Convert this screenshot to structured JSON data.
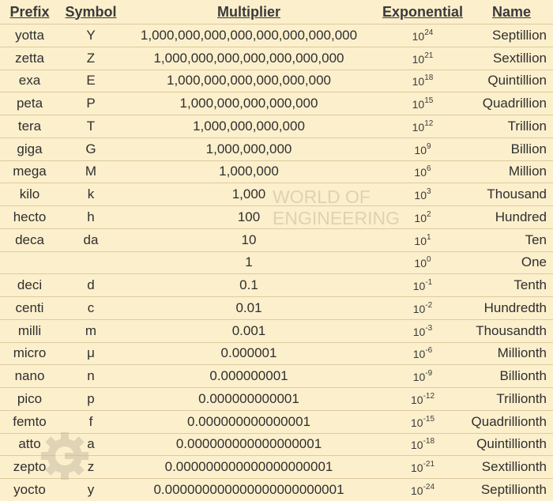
{
  "headers": {
    "prefix": "Prefix",
    "symbol": "Symbol",
    "multiplier": "Multiplier",
    "exponential": "Exponential",
    "name": "Name"
  },
  "rows": [
    {
      "prefix": "yotta",
      "symbol": "Y",
      "multiplier": "1,000,000,000,000,000,000,000,000",
      "base": "10",
      "exp": "24",
      "name": "Septillion"
    },
    {
      "prefix": "zetta",
      "symbol": "Z",
      "multiplier": "1,000,000,000,000,000,000,000",
      "base": "10",
      "exp": "21",
      "name": "Sextillion"
    },
    {
      "prefix": "exa",
      "symbol": "E",
      "multiplier": "1,000,000,000,000,000,000",
      "base": "10",
      "exp": "18",
      "name": "Quintillion"
    },
    {
      "prefix": "peta",
      "symbol": "P",
      "multiplier": "1,000,000,000,000,000",
      "base": "10",
      "exp": "15",
      "name": "Quadrillion"
    },
    {
      "prefix": "tera",
      "symbol": "T",
      "multiplier": "1,000,000,000,000",
      "base": "10",
      "exp": "12",
      "name": "Trillion"
    },
    {
      "prefix": "giga",
      "symbol": "G",
      "multiplier": "1,000,000,000",
      "base": "10",
      "exp": "9",
      "name": "Billion"
    },
    {
      "prefix": "mega",
      "symbol": "M",
      "multiplier": "1,000,000",
      "base": "10",
      "exp": "6",
      "name": "Million"
    },
    {
      "prefix": "kilo",
      "symbol": "k",
      "multiplier": "1,000",
      "base": "10",
      "exp": "3",
      "name": "Thousand"
    },
    {
      "prefix": "hecto",
      "symbol": "h",
      "multiplier": "100",
      "base": "10",
      "exp": "2",
      "name": "Hundred"
    },
    {
      "prefix": "deca",
      "symbol": "da",
      "multiplier": "10",
      "base": "10",
      "exp": "1",
      "name": "Ten"
    },
    {
      "prefix": "",
      "symbol": "",
      "multiplier": "1",
      "base": "10",
      "exp": "0",
      "name": "One"
    },
    {
      "prefix": "deci",
      "symbol": "d",
      "multiplier": "0.1",
      "base": "10",
      "exp": "-1",
      "name": "Tenth"
    },
    {
      "prefix": "centi",
      "symbol": "c",
      "multiplier": "0.01",
      "base": "10",
      "exp": "-2",
      "name": "Hundredth"
    },
    {
      "prefix": "milli",
      "symbol": "m",
      "multiplier": "0.001",
      "base": "10",
      "exp": "-3",
      "name": "Thousandth"
    },
    {
      "prefix": "micro",
      "symbol": "μ",
      "multiplier": "0.000001",
      "base": "10",
      "exp": "-6",
      "name": "Millionth"
    },
    {
      "prefix": "nano",
      "symbol": "n",
      "multiplier": "0.000000001",
      "base": "10",
      "exp": "-9",
      "name": "Billionth"
    },
    {
      "prefix": "pico",
      "symbol": "p",
      "multiplier": "0.000000000001",
      "base": "10",
      "exp": "-12",
      "name": "Trillionth"
    },
    {
      "prefix": "femto",
      "symbol": "f",
      "multiplier": "0.000000000000001",
      "base": "10",
      "exp": "-15",
      "name": "Quadrillionth"
    },
    {
      "prefix": "atto",
      "symbol": "a",
      "multiplier": "0.000000000000000001",
      "base": "10",
      "exp": "-18",
      "name": "Quintillionth"
    },
    {
      "prefix": "zepto",
      "symbol": "z",
      "multiplier": "0.000000000000000000001",
      "base": "10",
      "exp": "-21",
      "name": "Sextillionth"
    },
    {
      "prefix": "yocto",
      "symbol": "y",
      "multiplier": "0.000000000000000000000001",
      "base": "10",
      "exp": "-24",
      "name": "Septillionth"
    }
  ],
  "watermark": {
    "line1": "WORLD OF",
    "line2": "ENGINEERING"
  },
  "colors": {
    "background": "#fcefcc",
    "rule": "#dccb9f",
    "text": "#2f2f2f"
  }
}
